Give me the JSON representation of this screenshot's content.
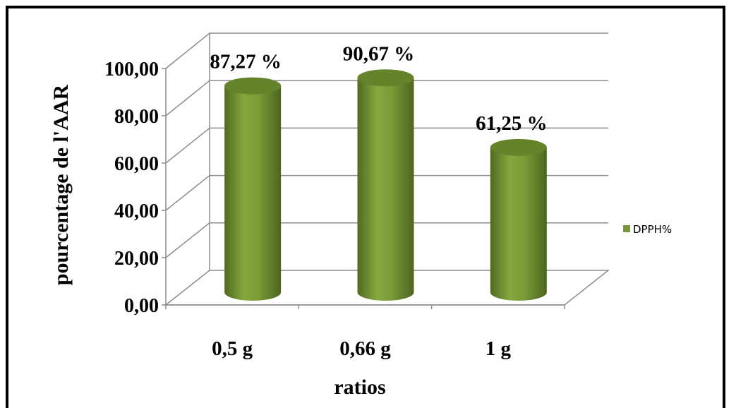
{
  "chart_data": {
    "type": "bar",
    "style": "3d-cylinder",
    "categories": [
      "0,5 g",
      "0,66 g",
      "1 g"
    ],
    "series": [
      {
        "name": "DPPH%",
        "values": [
          87.27,
          90.67,
          61.25
        ],
        "data_labels": [
          "87,27 %",
          "90,67 %",
          "61,25 %"
        ],
        "color": "#77933c"
      }
    ],
    "ylim": [
      0,
      100
    ],
    "yticks": [
      "0,00",
      "20,00",
      "40,00",
      "60,00",
      "80,00",
      "100,00"
    ],
    "xlabel": "ratios",
    "ylabel": "pourcentage de l'AAR",
    "grid": true,
    "legend_position": "right"
  }
}
